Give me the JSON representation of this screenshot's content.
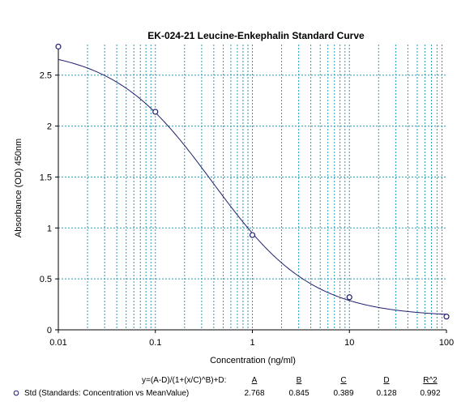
{
  "chart_data": {
    "type": "scatter",
    "title": "EK-024-21 Leucine-Enkephalin Standard Curve",
    "xlabel": "Concentration (ng/ml)",
    "ylabel": "Absorbance (OD) 450nm",
    "x_scale": "log",
    "xlim": [
      0.01,
      100
    ],
    "ylim": [
      0,
      2.8
    ],
    "x_tick_labels": [
      "0.01",
      "0.1",
      "1",
      "10",
      "100"
    ],
    "y_tick_labels": [
      "0",
      "0.5",
      "1",
      "1.5",
      "2",
      "2.5"
    ],
    "grid": true,
    "series": [
      {
        "name": "Std (Standards: Concentration vs MeanValue)",
        "marker": "circle",
        "points": [
          {
            "x": 0.01,
            "y": 2.78
          },
          {
            "x": 0.1,
            "y": 2.14
          },
          {
            "x": 1,
            "y": 0.93
          },
          {
            "x": 10,
            "y": 0.32
          },
          {
            "x": 100,
            "y": 0.13
          }
        ]
      }
    ],
    "fit": {
      "equation": "y=(A-D)/(1+(x/C)^B)+D:",
      "param_labels": [
        "A",
        "B",
        "C",
        "D",
        "R^2"
      ],
      "param_values": [
        "2.768",
        "0.845",
        "0.389",
        "0.128",
        "0.992"
      ],
      "A": 2.768,
      "B": 0.845,
      "C": 0.389,
      "D": 0.128,
      "R2": 0.992
    },
    "colors": {
      "curve": "#1f1f6e",
      "grid": "#2a9bb5",
      "marker": "#1f1f6e",
      "axis": "#000000"
    }
  }
}
